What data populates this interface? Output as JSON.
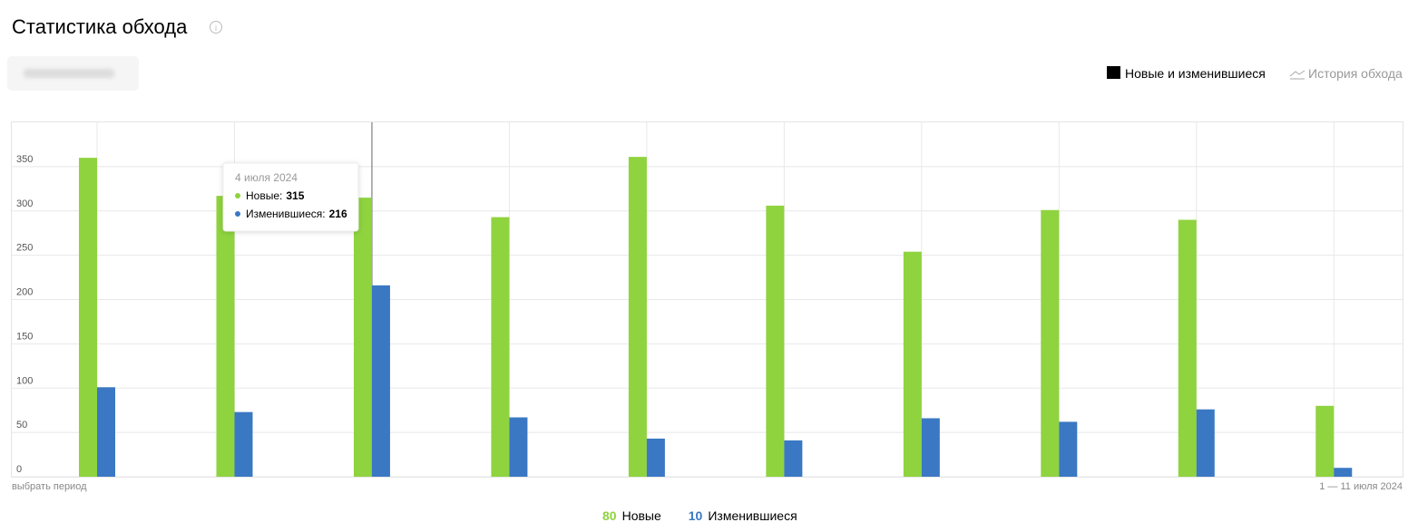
{
  "header": {
    "title": "Статистика обхода",
    "toggles": [
      "Новые и изменившиеся",
      "История обхода"
    ]
  },
  "chart_data": {
    "type": "bar",
    "categories": [
      null,
      null,
      null,
      null,
      null,
      null,
      null,
      null,
      null,
      null
    ],
    "series": [
      {
        "name": "Новые",
        "color": "#8fd33f",
        "values": [
          360,
          317,
          315,
          293,
          361,
          306,
          254,
          301,
          290,
          80
        ]
      },
      {
        "name": "Изменившиеся",
        "color": "#3a78c3",
        "values": [
          101,
          73,
          216,
          67,
          43,
          41,
          66,
          62,
          76,
          10
        ]
      }
    ],
    "ylim": [
      0,
      400
    ],
    "yticks": [
      0,
      50,
      100,
      150,
      200,
      250,
      300,
      350
    ],
    "grid": true,
    "period_link": "выбрать период",
    "period": "1 — 11 июля 2024",
    "tooltip": {
      "date": "4 июля 2024",
      "labels": [
        "Новые:",
        "Изменившиеся:"
      ]
    }
  }
}
